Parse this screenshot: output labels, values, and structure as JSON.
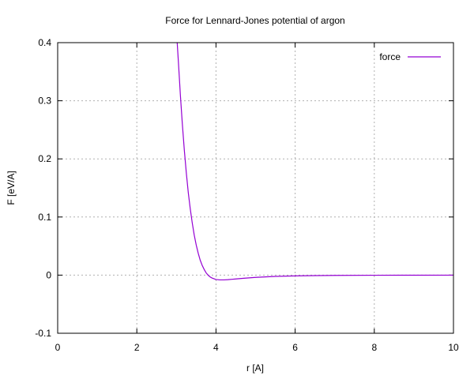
{
  "chart_data": {
    "type": "line",
    "title": "Force for Lennard-Jones potential of argon",
    "xlabel": "r  [A]",
    "ylabel": "F  [eV/A]",
    "xlim": [
      0,
      10
    ],
    "ylim": [
      -0.1,
      0.4
    ],
    "xticks": [
      0,
      2,
      4,
      6,
      8,
      10
    ],
    "yticks": [
      -0.1,
      0,
      0.1,
      0.2,
      0.3,
      0.4
    ],
    "xtick_labels": [
      "0",
      "2",
      "4",
      "6",
      "8",
      "10"
    ],
    "ytick_labels": [
      "-0.1",
      "0",
      "0.1",
      "0.2",
      "0.3",
      "0.4"
    ],
    "grid": true,
    "legend_position": "top-right",
    "series": [
      {
        "name": "force",
        "color": "#9400d3",
        "x": [
          3.02,
          3.05,
          3.08,
          3.1,
          3.15,
          3.2,
          3.25,
          3.3,
          3.35,
          3.4,
          3.45,
          3.5,
          3.55,
          3.6,
          3.65,
          3.7,
          3.75,
          3.8,
          3.85,
          3.9,
          4.0,
          4.1,
          4.2,
          4.3,
          4.4,
          4.5,
          4.7,
          5.0,
          5.5,
          6.0,
          6.5,
          7.0,
          8.0,
          9.0,
          10.0
        ],
        "y": [
          0.4,
          0.367,
          0.333,
          0.31,
          0.26,
          0.215,
          0.176,
          0.142,
          0.114,
          0.09,
          0.069,
          0.052,
          0.038,
          0.026,
          0.017,
          0.01,
          0.004,
          0.0,
          -0.003,
          -0.005,
          -0.0075,
          -0.0082,
          -0.0082,
          -0.0078,
          -0.0072,
          -0.0066,
          -0.0054,
          -0.0039,
          -0.0022,
          -0.0013,
          -0.0008,
          -0.0005,
          -0.0002,
          -0.0001,
          -5e-05
        ]
      }
    ]
  }
}
